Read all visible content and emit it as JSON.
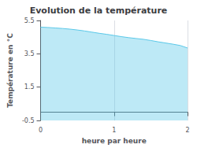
{
  "chart_data": {
    "type": "area",
    "title": "Evolution de la température",
    "x_label": "heure par heure",
    "y_label": "Température en °C",
    "x": [
      0,
      0.1,
      0.2,
      0.3,
      0.4,
      0.5,
      0.6,
      0.7,
      0.8,
      0.9,
      1.0,
      1.1,
      1.2,
      1.3,
      1.4,
      1.5,
      1.6,
      1.7,
      1.8,
      1.9,
      2.0
    ],
    "values": [
      5.1,
      5.08,
      5.05,
      5.02,
      4.98,
      4.93,
      4.87,
      4.8,
      4.73,
      4.67,
      4.6,
      4.53,
      4.47,
      4.42,
      4.37,
      4.3,
      4.22,
      4.15,
      4.08,
      4.0,
      3.85
    ],
    "color": "#5bc8e8",
    "xlim": [
      0,
      2
    ],
    "xticks": [
      0,
      1,
      2
    ],
    "ylim": [
      -0.5,
      5.5
    ],
    "yticks": [
      -0.5,
      1.5,
      3.5,
      5.5
    ],
    "grid": true
  }
}
